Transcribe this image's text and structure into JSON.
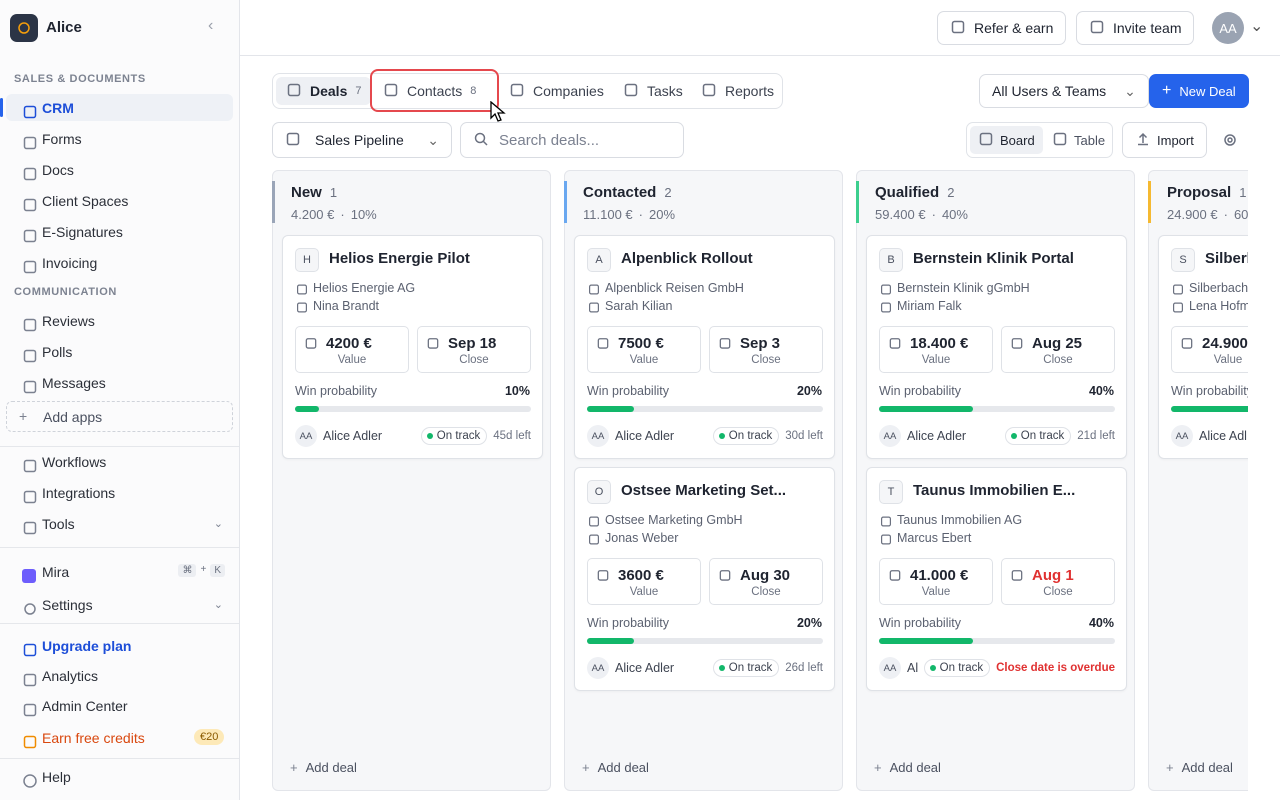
{
  "sidebar": {
    "workspace": "Alice",
    "sections": [
      {
        "title": "SALES & DOCUMENTS",
        "items": [
          "CRM",
          "Forms",
          "Docs",
          "Client Spaces",
          "E-Signatures",
          "Invoicing"
        ]
      },
      {
        "title": "COMMUNICATION",
        "items": [
          "Reviews",
          "Polls",
          "Messages"
        ]
      }
    ],
    "add_apps": "Add apps",
    "tools": [
      "Workflows",
      "Integrations",
      "Tools"
    ],
    "mira": "Mira",
    "shortcut": [
      "⌘",
      "+",
      "K"
    ],
    "settings": "Settings",
    "footer": [
      "Upgrade plan",
      "Analytics",
      "Admin Center",
      "Earn free credits"
    ],
    "credits_badge": "€20",
    "help": "Help"
  },
  "header": {
    "refer": "Refer & earn",
    "invite": "Invite team",
    "avatar": "AA"
  },
  "toolbar": {
    "tabs": [
      {
        "label": "Deals",
        "count": 7
      },
      {
        "label": "Contacts",
        "count": 8
      },
      {
        "label": "Companies"
      },
      {
        "label": "Tasks"
      },
      {
        "label": "Reports"
      }
    ],
    "filter": "All Users & Teams",
    "new_deal": "New Deal",
    "pipeline": "Sales Pipeline",
    "search": "Search deals...",
    "views": [
      "Board",
      "Table"
    ],
    "import": "Import"
  },
  "board": {
    "labels": {
      "value": "Value",
      "close": "Close",
      "win": "Win probability",
      "status": "On track"
    },
    "add_deal": "Add deal",
    "columns": [
      {
        "name": "New",
        "count": 1,
        "total": "4.200 €",
        "pct": "10%",
        "color": "#9aa5b8",
        "cards": [
          {
            "initial": "H",
            "title": "Helios Energie Pilot",
            "company": "Helios Energie AG",
            "contact": "Nina Brandt",
            "value": "4200 €",
            "close": "Sep 18",
            "win": {
              "value": 10,
              "label": "10%"
            },
            "owner_initials": "AA",
            "owner": "Alice Adler",
            "due": "45d left"
          }
        ]
      },
      {
        "name": "Contacted",
        "count": 2,
        "total": "11.100 €",
        "pct": "20%",
        "color": "#6aa8f0",
        "cards": [
          {
            "initial": "A",
            "title": "Alpenblick Rollout",
            "company": "Alpenblick Reisen GmbH",
            "contact": "Sarah Kilian",
            "value": "7500 €",
            "close": "Sep 3",
            "win": {
              "value": 20,
              "label": "20%"
            },
            "owner_initials": "AA",
            "owner": "Alice Adler",
            "due": "30d left"
          },
          {
            "initial": "O",
            "title": "Ostsee Marketing Set...",
            "company": "Ostsee Marketing GmbH",
            "contact": "Jonas Weber",
            "value": "3600 €",
            "close": "Aug 30",
            "win": {
              "value": 20,
              "label": "20%"
            },
            "owner_initials": "AA",
            "owner": "Alice Adler",
            "due": "26d left"
          }
        ]
      },
      {
        "name": "Qualified",
        "count": 2,
        "total": "59.400 €",
        "pct": "40%",
        "color": "#3ccf8e",
        "cards": [
          {
            "initial": "B",
            "title": "Bernstein Klinik Portal",
            "company": "Bernstein Klinik gGmbH",
            "contact": "Miriam Falk",
            "value": "18.400 €",
            "close": "Aug 25",
            "win": {
              "value": 40,
              "label": "40%"
            },
            "owner_initials": "AA",
            "owner": "Alice Adler",
            "due": "21d left"
          },
          {
            "initial": "T",
            "title": "Taunus Immobilien E...",
            "company": "Taunus Immobilien AG",
            "contact": "Marcus Ebert",
            "value": "41.000 €",
            "close": "Aug 1",
            "overdue": true,
            "win": {
              "value": 40,
              "label": "40%"
            },
            "owner_initials": "AA",
            "owner": "Alice Adler",
            "due": "Close date is overdue"
          }
        ]
      },
      {
        "name": "Proposal",
        "count": 1,
        "total": "24.900 €",
        "pct": "60",
        "color": "#f5b931",
        "cards": [
          {
            "initial": "S",
            "title": "Silberb",
            "company": "Silberbach",
            "contact": "Lena Hofm",
            "value": "24.900",
            "win": {
              "value": 60
            },
            "owner_initials": "AA",
            "owner": "Alice Adl"
          }
        ]
      }
    ]
  }
}
